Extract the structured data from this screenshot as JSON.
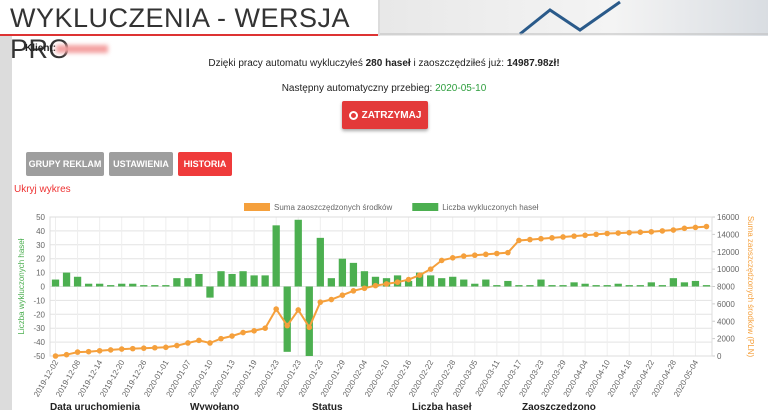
{
  "header": {
    "title": "WYKLUCZENIA - WERSJA PRO"
  },
  "client": {
    "label": "Klient:"
  },
  "summary": {
    "prefix": "Dzięki pracy automatu wykluczyłeś",
    "count": "280 haseł",
    "middle": "i zaoszczędziłeś już:",
    "amount": "14987.98zł!"
  },
  "next_run": {
    "label": "Następny automatyczny przebieg:",
    "date": "2020-05-10"
  },
  "stop_button": "ZATRZYMAJ",
  "tabs": [
    "GRUPY REKLAM",
    "USTAWIENIA",
    "HISTORIA"
  ],
  "toggle_chart": "Ukryj wykres",
  "chart_data": {
    "type": "bar",
    "ylabel": "Liczba wykluczonych haseł",
    "y2label": "Suma zaoszczędzonych środków (PLN)",
    "categories": [
      "2019-12-02",
      null,
      "2019-12-08",
      null,
      "2019-12-14",
      null,
      "2019-12-20",
      null,
      "2019-12-26",
      null,
      "2020-01-01",
      null,
      "2020-01-07",
      null,
      "2020-01-10",
      null,
      "2020-01-13",
      null,
      "2020-01-19",
      null,
      "2020-01-23",
      null,
      "2020-01-23",
      null,
      "2020-01-23",
      null,
      "2020-01-29",
      null,
      "2020-02-04",
      null,
      "2020-02-10",
      null,
      "2020-02-16",
      null,
      "2020-02-22",
      null,
      "2020-02-28",
      null,
      "2020-03-05",
      null,
      "2020-03-11",
      null,
      "2020-03-17",
      null,
      "2020-03-23",
      null,
      "2020-03-29",
      null,
      "2020-04-04",
      null,
      "2020-04-10",
      null,
      "2020-04-16",
      null,
      "2020-04-22",
      null,
      "2020-04-28",
      null,
      "2020-05-04",
      null
    ],
    "series": [
      {
        "name": "Suma zaoszczędzonych środków",
        "type": "line",
        "axis": "y2",
        "color": "#f5a03c",
        "values": [
          0,
          150,
          450,
          500,
          600,
          700,
          800,
          850,
          900,
          950,
          1000,
          1200,
          1500,
          1800,
          1500,
          2000,
          2300,
          2700,
          2900,
          3200,
          5400,
          3500,
          5300,
          3300,
          6200,
          6500,
          7000,
          7500,
          7800,
          8100,
          8300,
          8500,
          8800,
          9300,
          10000,
          11000,
          11300,
          11500,
          11600,
          11700,
          11800,
          11900,
          13300,
          13400,
          13500,
          13600,
          13700,
          13800,
          13900,
          14000,
          14100,
          14150,
          14200,
          14250,
          14300,
          14400,
          14500,
          14700,
          14800,
          14900
        ]
      },
      {
        "name": "Liczba wykluczonych haseł",
        "type": "bar",
        "color": "#4caf50",
        "values": [
          5,
          10,
          7,
          2,
          2,
          1,
          2,
          2,
          1,
          1,
          1,
          6,
          6,
          9,
          -8,
          11,
          9,
          11,
          8,
          8,
          44,
          -47,
          48,
          -50,
          35,
          6,
          20,
          17,
          11,
          7,
          6,
          8,
          4,
          10,
          8,
          6,
          7,
          5,
          2,
          5,
          1,
          4,
          1,
          1,
          5,
          1,
          1,
          3,
          2,
          1,
          1,
          2,
          1,
          1,
          3,
          1,
          6,
          3,
          4,
          1
        ]
      }
    ],
    "ylim": [
      -50,
      50
    ],
    "yticks": [
      -50,
      -40,
      -30,
      -20,
      -10,
      0,
      10,
      20,
      30,
      40,
      50
    ],
    "y2lim": [
      0,
      16000
    ],
    "y2ticks": [
      0,
      2000,
      4000,
      6000,
      8000,
      10000,
      12000,
      14000,
      16000
    ],
    "grid": true
  },
  "table": {
    "columns": [
      "Data uruchomienia",
      "Wywołano",
      "Status",
      "Liczba haseł",
      "Zaoszczędzono"
    ]
  }
}
